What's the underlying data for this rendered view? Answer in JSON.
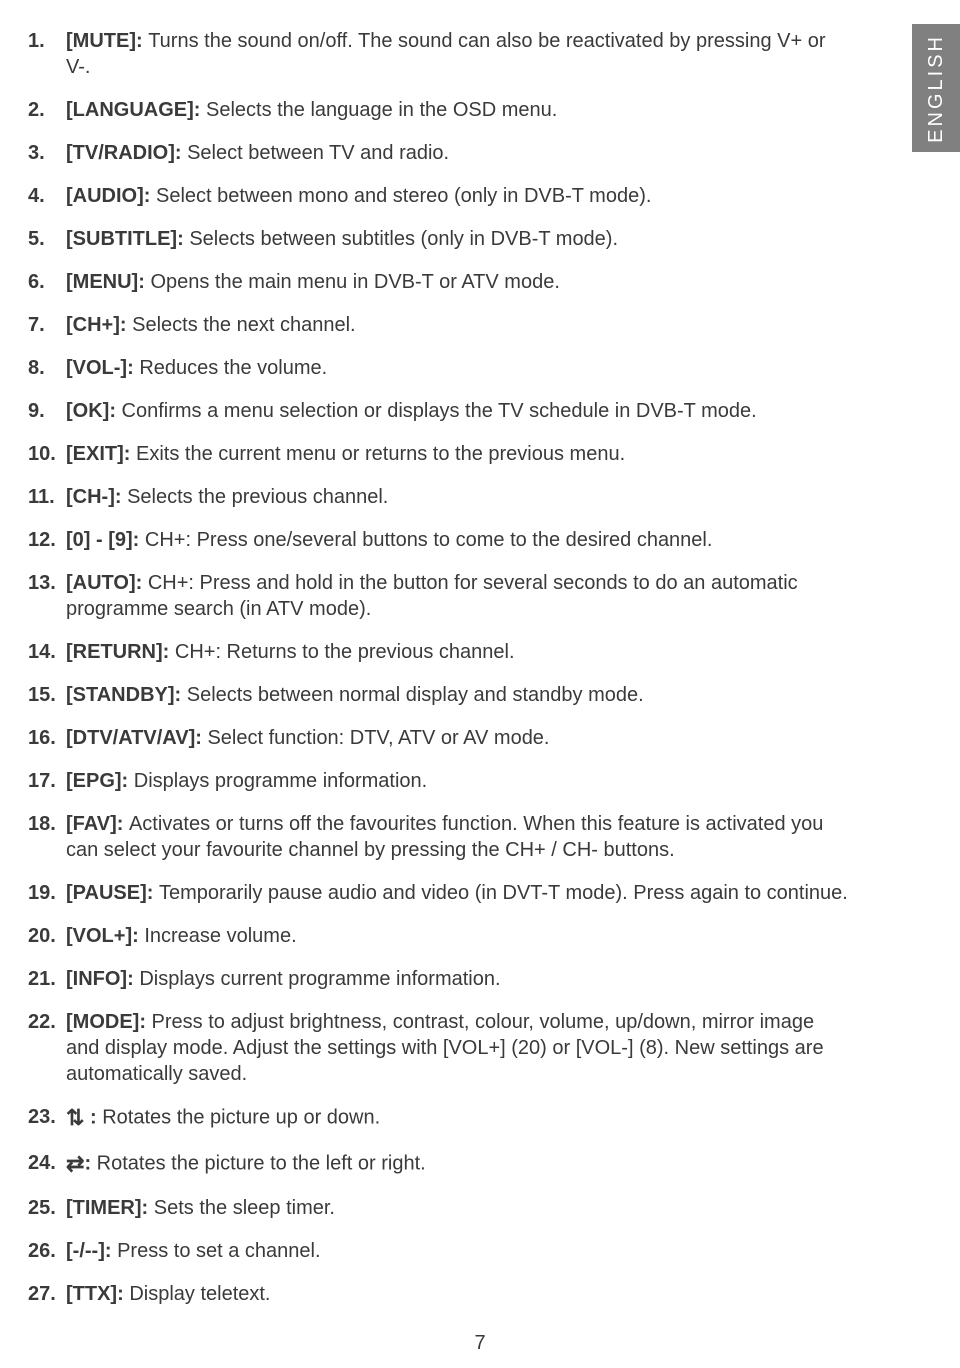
{
  "sideTab": "ENGLISH",
  "pageNumber": "7",
  "items": [
    {
      "num": "1.",
      "key": "[MUTE]: ",
      "desc": "Turns the sound on/off. The sound can also be reactivated by pressing V+ or V-."
    },
    {
      "num": "2.",
      "key": "[LANGUAGE]: ",
      "desc": "Selects the language in the OSD menu."
    },
    {
      "num": "3.",
      "key": "[TV/RADIO]: ",
      "desc": "Select between TV and radio."
    },
    {
      "num": "4.",
      "key": "[AUDIO]: ",
      "desc": "Select between mono and stereo (only in DVB-T mode)."
    },
    {
      "num": "5.",
      "key": "[SUBTITLE]: ",
      "desc": "Selects between subtitles (only in DVB-T mode)."
    },
    {
      "num": "6.",
      "key": "[MENU]: ",
      "desc": "Opens the main menu in DVB-T or ATV mode."
    },
    {
      "num": "7.",
      "key": "[CH+]: ",
      "desc": "Selects the next channel."
    },
    {
      "num": "8.",
      "key": "[VOL-]: ",
      "desc": "Reduces the volume."
    },
    {
      "num": "9.",
      "key": "[OK]: ",
      "desc": "Confirms a menu selection or displays the TV schedule in DVB-T mode."
    },
    {
      "num": "10.",
      "key": "[EXIT]: ",
      "desc": "Exits the current menu or returns to the previous menu."
    },
    {
      "num": "11.",
      "key": "[CH-]: ",
      "desc": "Selects the previous channel."
    },
    {
      "num": "12.",
      "key": "[0] - [9]: ",
      "desc": "CH+: Press one/several buttons to come to the desired channel."
    },
    {
      "num": "13.",
      "key": "[AUTO]: ",
      "desc": "CH+: Press and hold in the button for several seconds to do an automatic programme search (in ATV mode)."
    },
    {
      "num": "14.",
      "key": "[RETURN]: ",
      "desc": "CH+: Returns to the previous channel."
    },
    {
      "num": "15.",
      "key": "[STANDBY]: ",
      "desc": "Selects between normal display and standby mode."
    },
    {
      "num": "16.",
      "key": "[DTV/ATV/AV]: ",
      "desc": "Select function: DTV, ATV or AV mode."
    },
    {
      "num": "17.",
      "key": "[EPG]: ",
      "desc": "Displays programme information."
    },
    {
      "num": "18.",
      "key": "[FAV]: ",
      "desc": "Activates or turns off the favourites function. When this feature is activated you can select your favourite channel by pressing the CH+ / CH- buttons."
    },
    {
      "num": "19.",
      "key": "[PAUSE]: ",
      "desc": "Temporarily pause audio and video (in DVT-T mode). Press again to continue."
    },
    {
      "num": "20.",
      "key": "[VOL+]: ",
      "desc": "Increase volume."
    },
    {
      "num": "21.",
      "key": "[INFO]: ",
      "desc": "Displays current programme information."
    },
    {
      "num": "22.",
      "key": "[MODE]: ",
      "desc": "Press to adjust brightness, contrast, colour, volume, up/down, mirror image and display mode. Adjust the settings with [VOL+] (20) or [VOL-] (8). New settings are automatically saved."
    },
    {
      "num": "23.",
      "icon": "⇅",
      "key": " : ",
      "desc": "Rotates the picture up or down."
    },
    {
      "num": "24.",
      "icon": "⇄",
      "key": ": ",
      "desc": "Rotates the picture to the left or right."
    },
    {
      "num": "25.",
      "key": "[TIMER]: ",
      "desc": "Sets the sleep timer."
    },
    {
      "num": "26.",
      "key": "[-/--]: ",
      "desc": "Press to set a channel."
    },
    {
      "num": "27.",
      "key": "[TTX]: ",
      "desc": "Display teletext."
    }
  ]
}
